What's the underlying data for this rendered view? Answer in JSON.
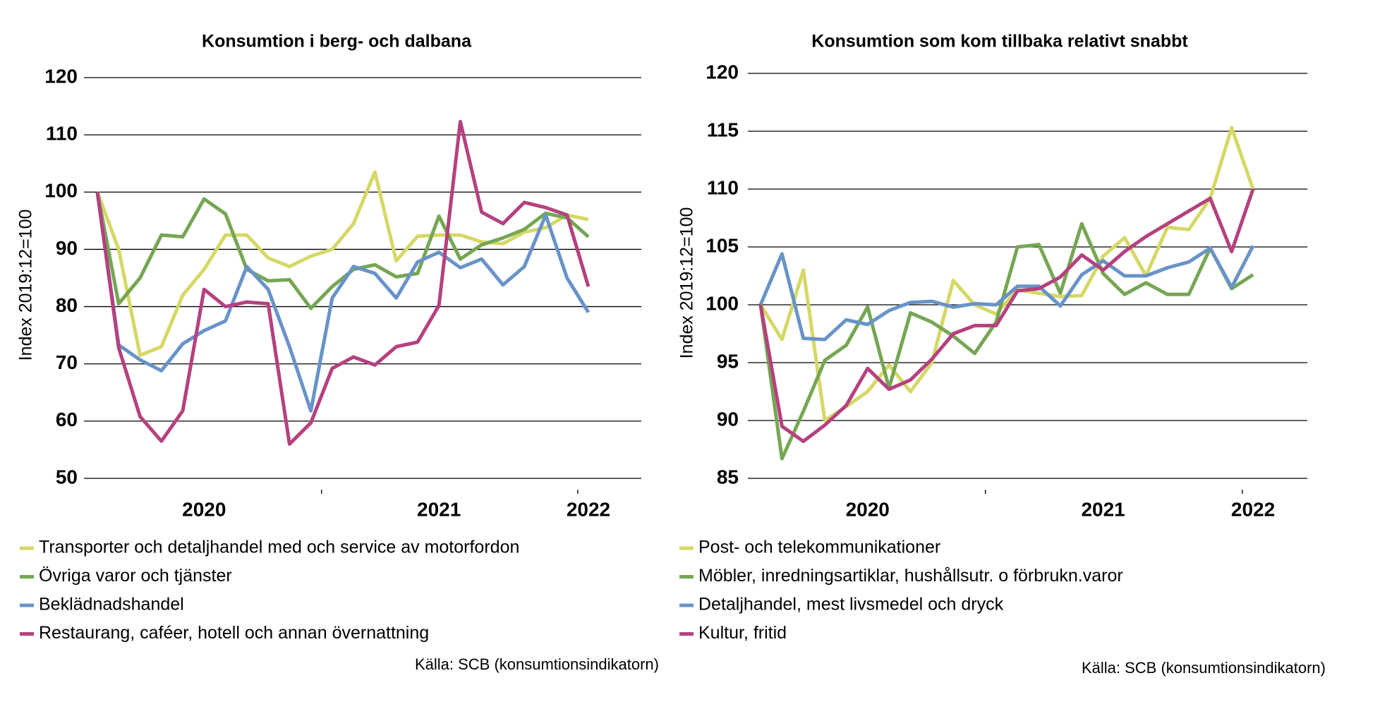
{
  "chart_data": [
    {
      "type": "line",
      "title": "Konsumtion i berg- och dalbana",
      "y_label": "Index 2019:12=100",
      "categories": [
        null,
        null,
        null,
        null,
        null,
        "2020",
        null,
        null,
        null,
        null,
        null,
        null,
        null,
        null,
        null,
        null,
        "2021",
        null,
        null,
        null,
        null,
        null,
        null,
        "2022"
      ],
      "ylim": [
        50,
        120
      ],
      "yticks": [
        50,
        60,
        70,
        80,
        90,
        100,
        110,
        120
      ],
      "grid": true,
      "series": [
        {
          "name": "Transporter och detaljhandel med och service av  motorfordon",
          "color": "#d5d865",
          "values": [
            100,
            90,
            71.5,
            73,
            82,
            86.5,
            92.5,
            92.5,
            88.5,
            87,
            88.8,
            90,
            94.5,
            103.5,
            88,
            92.3,
            92.5,
            92.5,
            91.3,
            91,
            93,
            93.8,
            96,
            95.2
          ]
        },
        {
          "name": "Övriga varor och tjänster",
          "color": "#76a653",
          "values": [
            100,
            80.5,
            85,
            92.5,
            92.2,
            98.8,
            96.2,
            86.5,
            84.5,
            84.7,
            79.7,
            83.5,
            86.5,
            87.3,
            85.2,
            85.8,
            95.8,
            88.3,
            90.8,
            92,
            93.5,
            96.3,
            95.5,
            92.2
          ]
        },
        {
          "name": "Beklädnadshandel",
          "color": "#6893c8",
          "values": [
            100,
            73.3,
            70.7,
            68.8,
            73.5,
            75.8,
            77.5,
            87,
            83,
            73,
            61.8,
            81.5,
            87,
            85.8,
            81.5,
            87.8,
            89.5,
            86.8,
            88.3,
            83.8,
            87,
            96,
            85,
            79
          ]
        },
        {
          "name": "Restaurang, caféer, hotell och annan övernattning",
          "color": "#b5417f",
          "values": [
            100,
            72.8,
            60.8,
            56.5,
            61.8,
            83,
            80,
            80.8,
            80.5,
            56,
            59.7,
            69.2,
            71.2,
            69.8,
            73,
            73.8,
            80.2,
            112.3,
            96.5,
            94.5,
            98.2,
            97.3,
            96,
            83.5
          ]
        }
      ],
      "source": "Källa: SCB (konsumtionsindikatorn)"
    },
    {
      "type": "line",
      "title": "Konsumtion som kom tillbaka relativt snabbt",
      "y_label": "Index 2019:12=100",
      "categories": [
        null,
        null,
        null,
        null,
        null,
        "2020",
        null,
        null,
        null,
        null,
        null,
        null,
        null,
        null,
        null,
        null,
        "2021",
        null,
        null,
        null,
        null,
        null,
        null,
        "2022"
      ],
      "ylim": [
        85,
        120
      ],
      "yticks": [
        85,
        90,
        95,
        100,
        105,
        110,
        115,
        120
      ],
      "grid": true,
      "series": [
        {
          "name": "Post- och telekommunikationer",
          "color": "#d5d865",
          "values": [
            100,
            97,
            103,
            90,
            91.2,
            92.5,
            94.8,
            92.5,
            95,
            102.1,
            100,
            99.2,
            101.3,
            101,
            100.7,
            100.8,
            104.2,
            105.8,
            102.5,
            106.7,
            106.5,
            109.2,
            115.3,
            110
          ]
        },
        {
          "name": "Möbler, inredningsartiklar, hushållsutr. o förbrukn.varor",
          "color": "#76a653",
          "values": [
            100,
            86.7,
            90.8,
            95.2,
            96.5,
            99.8,
            92.8,
            99.3,
            98.5,
            97.3,
            95.8,
            98.5,
            105,
            105.2,
            101,
            107,
            102.7,
            100.9,
            101.9,
            100.9,
            100.9,
            104.9,
            101.4,
            102.6
          ]
        },
        {
          "name": "Detaljhandel, mest livsmedel och dryck",
          "color": "#6893c8",
          "values": [
            100,
            104.4,
            97.1,
            97,
            98.7,
            98.3,
            99.5,
            100.2,
            100.3,
            99.8,
            100.1,
            100,
            101.6,
            101.6,
            99.9,
            102.6,
            103.8,
            102.5,
            102.5,
            103.2,
            103.7,
            104.9,
            101.5,
            105.1
          ]
        },
        {
          "name": "Kultur, fritid",
          "color": "#b5417f",
          "values": [
            100,
            89.5,
            88.2,
            89.6,
            91.3,
            94.5,
            92.7,
            93.5,
            95.3,
            97.5,
            98.2,
            98.2,
            101.2,
            101.4,
            102.4,
            104.3,
            103,
            104.6,
            105.9,
            107,
            108.1,
            109.2,
            104.6,
            110
          ]
        }
      ],
      "source": "Källa: SCB (konsumtionsindikatorn)"
    }
  ]
}
